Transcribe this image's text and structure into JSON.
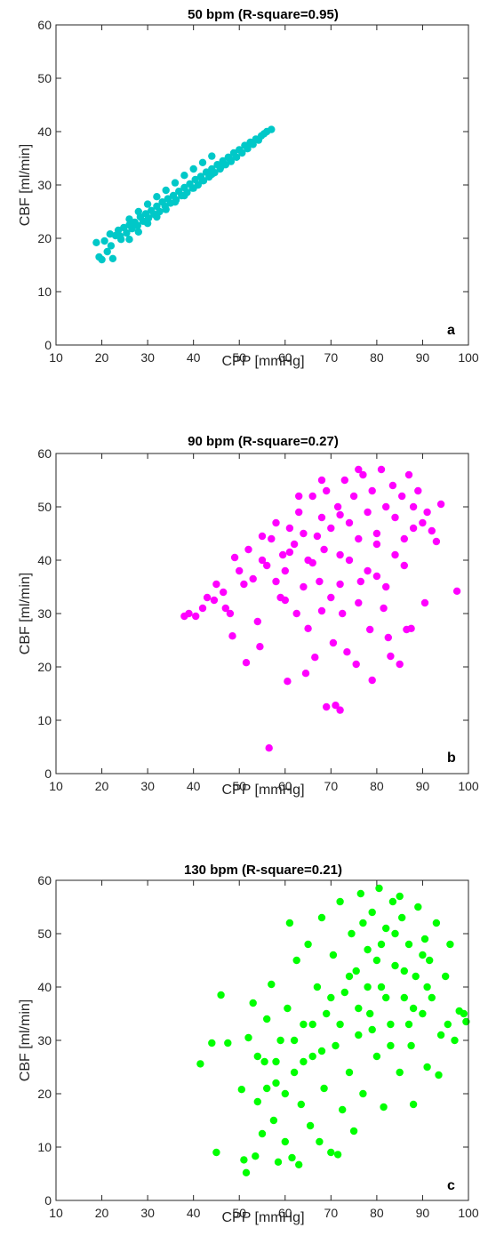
{
  "chart_data": [
    {
      "type": "scatter",
      "title": "50 bpm (R-square=0.95)",
      "xlabel": "CPP [mmHg]",
      "ylabel": "CBF [ml/min]",
      "xlim": [
        10,
        100
      ],
      "ylim": [
        0,
        60
      ],
      "xticks": [
        10,
        20,
        30,
        40,
        50,
        60,
        70,
        80,
        90,
        100
      ],
      "yticks": [
        0,
        10,
        20,
        30,
        40,
        50,
        60
      ],
      "grid": false,
      "color": "#00C8C8",
      "panel_label": "a",
      "points": [
        [
          18.8,
          19.2
        ],
        [
          19.4,
          16.5
        ],
        [
          20.0,
          16.0
        ],
        [
          20.6,
          19.5
        ],
        [
          21.2,
          17.5
        ],
        [
          21.8,
          20.8
        ],
        [
          22.4,
          16.2
        ],
        [
          23.0,
          20.5
        ],
        [
          23.6,
          21.5
        ],
        [
          24.2,
          19.8
        ],
        [
          24.8,
          22.0
        ],
        [
          25.4,
          21.0
        ],
        [
          26.0,
          22.5
        ],
        [
          26.6,
          21.8
        ],
        [
          27.2,
          23.0
        ],
        [
          27.8,
          22.4
        ],
        [
          28.4,
          24.0
        ],
        [
          29.0,
          23.2
        ],
        [
          29.6,
          24.6
        ],
        [
          30.2,
          23.8
        ],
        [
          30.8,
          25.2
        ],
        [
          31.4,
          24.5
        ],
        [
          32.0,
          26.0
        ],
        [
          32.6,
          25.0
        ],
        [
          33.2,
          26.8
        ],
        [
          33.8,
          26.0
        ],
        [
          34.4,
          27.4
        ],
        [
          35.0,
          26.6
        ],
        [
          35.6,
          28.0
        ],
        [
          36.2,
          27.2
        ],
        [
          36.8,
          28.8
        ],
        [
          37.4,
          28.0
        ],
        [
          38.0,
          29.5
        ],
        [
          38.6,
          28.6
        ],
        [
          39.2,
          30.2
        ],
        [
          39.8,
          29.4
        ],
        [
          40.4,
          31.0
        ],
        [
          41.0,
          30.0
        ],
        [
          41.6,
          31.6
        ],
        [
          42.2,
          30.8
        ],
        [
          42.8,
          32.4
        ],
        [
          43.4,
          31.5
        ],
        [
          44.0,
          33.0
        ],
        [
          44.6,
          32.3
        ],
        [
          45.2,
          33.8
        ],
        [
          45.8,
          33.0
        ],
        [
          46.4,
          34.5
        ],
        [
          47.0,
          33.8
        ],
        [
          47.6,
          35.2
        ],
        [
          48.2,
          34.4
        ],
        [
          48.8,
          36.0
        ],
        [
          49.4,
          35.2
        ],
        [
          50.0,
          36.6
        ],
        [
          50.6,
          36.0
        ],
        [
          51.2,
          37.4
        ],
        [
          51.8,
          36.8
        ],
        [
          52.4,
          38.0
        ],
        [
          53.0,
          37.6
        ],
        [
          53.6,
          38.6
        ],
        [
          54.2,
          38.4
        ],
        [
          54.8,
          39.2
        ],
        [
          55.4,
          39.6
        ],
        [
          56.0,
          40.0
        ],
        [
          57.0,
          40.4
        ],
        [
          26.0,
          19.8
        ],
        [
          28.0,
          21.2
        ],
        [
          30.0,
          22.8
        ],
        [
          32.0,
          24.0
        ],
        [
          34.0,
          25.4
        ],
        [
          36.0,
          26.8
        ],
        [
          38.0,
          28.0
        ],
        [
          40.0,
          29.4
        ],
        [
          42.0,
          30.8
        ],
        [
          44.0,
          32.0
        ],
        [
          46.0,
          33.4
        ],
        [
          48.0,
          34.8
        ],
        [
          22.0,
          18.6
        ],
        [
          24.0,
          20.4
        ],
        [
          26.0,
          23.6
        ],
        [
          28.0,
          25.0
        ],
        [
          30.0,
          26.4
        ],
        [
          32.0,
          27.8
        ],
        [
          34.0,
          29.0
        ],
        [
          36.0,
          30.4
        ],
        [
          38.0,
          31.8
        ],
        [
          40.0,
          33.0
        ],
        [
          42.0,
          34.2
        ],
        [
          44.0,
          35.4
        ]
      ]
    },
    {
      "type": "scatter",
      "title": "90 bpm (R-square=0.27)",
      "xlabel": "CPP [mmHg]",
      "ylabel": "CBF [ml/min]",
      "xlim": [
        10,
        100
      ],
      "ylim": [
        0,
        60
      ],
      "xticks": [
        10,
        20,
        30,
        40,
        50,
        60,
        70,
        80,
        90,
        100
      ],
      "yticks": [
        0,
        10,
        20,
        30,
        40,
        50,
        60
      ],
      "grid": false,
      "color": "#FF00FF",
      "panel_label": "b",
      "points": [
        [
          38.0,
          29.5
        ],
        [
          39.0,
          30.0
        ],
        [
          40.5,
          29.5
        ],
        [
          42.0,
          31.0
        ],
        [
          43.0,
          33.0
        ],
        [
          44.5,
          32.5
        ],
        [
          45.0,
          35.5
        ],
        [
          46.5,
          34.0
        ],
        [
          47.0,
          31.0
        ],
        [
          48.0,
          30.0
        ],
        [
          48.5,
          25.8
        ],
        [
          49.0,
          40.5
        ],
        [
          50.0,
          38.0
        ],
        [
          51.0,
          35.5
        ],
        [
          51.5,
          20.8
        ],
        [
          52.0,
          42.0
        ],
        [
          53.0,
          36.5
        ],
        [
          54.0,
          28.5
        ],
        [
          54.5,
          23.8
        ],
        [
          55.0,
          40.0
        ],
        [
          56.0,
          39.0
        ],
        [
          56.5,
          4.8
        ],
        [
          57.0,
          44.0
        ],
        [
          58.0,
          36.0
        ],
        [
          59.0,
          33.0
        ],
        [
          59.5,
          41.0
        ],
        [
          60.0,
          38.0
        ],
        [
          60.5,
          17.3
        ],
        [
          61.0,
          46.0
        ],
        [
          62.0,
          43.0
        ],
        [
          62.5,
          30.0
        ],
        [
          63.0,
          49.0
        ],
        [
          64.0,
          45.0
        ],
        [
          64.5,
          18.8
        ],
        [
          65.0,
          27.2
        ],
        [
          65.0,
          40.0
        ],
        [
          66.0,
          52.0
        ],
        [
          66.5,
          21.8
        ],
        [
          67.0,
          44.5
        ],
        [
          67.5,
          36.0
        ],
        [
          68.0,
          48.0
        ],
        [
          68.5,
          42.0
        ],
        [
          69.0,
          12.5
        ],
        [
          69.0,
          53.0
        ],
        [
          70.0,
          46.0
        ],
        [
          70.5,
          24.5
        ],
        [
          71.0,
          12.8
        ],
        [
          71.5,
          50.0
        ],
        [
          72.0,
          11.9
        ],
        [
          72.0,
          41.0
        ],
        [
          72.5,
          30.0
        ],
        [
          73.0,
          55.0
        ],
        [
          73.5,
          22.8
        ],
        [
          74.0,
          47.0
        ],
        [
          75.0,
          52.0
        ],
        [
          75.5,
          20.5
        ],
        [
          76.0,
          44.0
        ],
        [
          76.5,
          36.0
        ],
        [
          77.0,
          56.0
        ],
        [
          78.0,
          49.0
        ],
        [
          78.5,
          27.0
        ],
        [
          79.0,
          17.5
        ],
        [
          79.0,
          53.0
        ],
        [
          80.0,
          45.0
        ],
        [
          81.0,
          57.0
        ],
        [
          81.5,
          31.0
        ],
        [
          82.0,
          50.0
        ],
        [
          82.5,
          25.5
        ],
        [
          83.0,
          22.0
        ],
        [
          83.5,
          54.0
        ],
        [
          84.0,
          48.0
        ],
        [
          85.0,
          20.5
        ],
        [
          85.5,
          52.0
        ],
        [
          86.0,
          44.0
        ],
        [
          86.5,
          27.0
        ],
        [
          87.0,
          56.0
        ],
        [
          87.5,
          27.2
        ],
        [
          88.0,
          50.0
        ],
        [
          89.0,
          53.0
        ],
        [
          90.0,
          47.0
        ],
        [
          90.5,
          32.0
        ],
        [
          91.0,
          49.0
        ],
        [
          92.0,
          45.5
        ],
        [
          93.0,
          43.5
        ],
        [
          94.0,
          50.5
        ],
        [
          97.5,
          34.2
        ],
        [
          55.0,
          44.5
        ],
        [
          58.0,
          47.0
        ],
        [
          61.0,
          41.5
        ],
        [
          63.0,
          52.0
        ],
        [
          66.0,
          39.5
        ],
        [
          68.0,
          55.0
        ],
        [
          70.0,
          33.0
        ],
        [
          72.0,
          48.5
        ],
        [
          74.0,
          40.0
        ],
        [
          76.0,
          57.0
        ],
        [
          78.0,
          38.0
        ],
        [
          80.0,
          43.0
        ],
        [
          82.0,
          35.0
        ],
        [
          84.0,
          41.0
        ],
        [
          86.0,
          39.0
        ],
        [
          88.0,
          46.0
        ],
        [
          60.0,
          32.5
        ],
        [
          64.0,
          35.0
        ],
        [
          68.0,
          30.5
        ],
        [
          72.0,
          35.5
        ],
        [
          76.0,
          32.0
        ],
        [
          80.0,
          37.0
        ]
      ]
    },
    {
      "type": "scatter",
      "title": "130 bpm (R-square=0.21)",
      "xlabel": "CPP [mmHg]",
      "ylabel": "CBF [ml/min]",
      "xlim": [
        10,
        100
      ],
      "ylim": [
        0,
        60
      ],
      "xticks": [
        10,
        20,
        30,
        40,
        50,
        60,
        70,
        80,
        90,
        100
      ],
      "yticks": [
        0,
        10,
        20,
        30,
        40,
        50,
        60
      ],
      "grid": false,
      "color": "#00FF00",
      "panel_label": "c",
      "points": [
        [
          41.5,
          25.6
        ],
        [
          44.0,
          29.5
        ],
        [
          45.0,
          9.0
        ],
        [
          46.0,
          38.5
        ],
        [
          47.5,
          29.5
        ],
        [
          50.5,
          20.8
        ],
        [
          51.0,
          7.6
        ],
        [
          51.5,
          5.2
        ],
        [
          52.0,
          30.5
        ],
        [
          53.0,
          37.0
        ],
        [
          53.5,
          8.3
        ],
        [
          54.0,
          18.5
        ],
        [
          55.0,
          12.5
        ],
        [
          55.5,
          26.0
        ],
        [
          56.0,
          34.0
        ],
        [
          57.0,
          40.5
        ],
        [
          57.5,
          15.0
        ],
        [
          58.0,
          22.0
        ],
        [
          58.5,
          7.2
        ],
        [
          59.0,
          30.0
        ],
        [
          60.0,
          11.0
        ],
        [
          60.5,
          36.0
        ],
        [
          61.0,
          52.0
        ],
        [
          61.5,
          8.0
        ],
        [
          62.0,
          24.0
        ],
        [
          62.5,
          45.0
        ],
        [
          63.0,
          6.7
        ],
        [
          63.5,
          18.0
        ],
        [
          64.0,
          33.0
        ],
        [
          65.0,
          48.0
        ],
        [
          65.5,
          14.0
        ],
        [
          66.0,
          27.0
        ],
        [
          67.0,
          40.0
        ],
        [
          67.5,
          11.0
        ],
        [
          68.0,
          53.0
        ],
        [
          68.5,
          21.0
        ],
        [
          69.0,
          35.0
        ],
        [
          70.0,
          9.0
        ],
        [
          70.5,
          46.0
        ],
        [
          71.0,
          29.0
        ],
        [
          71.5,
          8.6
        ],
        [
          72.0,
          56.0
        ],
        [
          72.5,
          17.0
        ],
        [
          73.0,
          39.0
        ],
        [
          74.0,
          24.0
        ],
        [
          74.5,
          50.0
        ],
        [
          75.0,
          13.0
        ],
        [
          75.5,
          43.0
        ],
        [
          76.0,
          31.0
        ],
        [
          76.5,
          57.5
        ],
        [
          77.0,
          20.0
        ],
        [
          78.0,
          47.0
        ],
        [
          78.5,
          35.0
        ],
        [
          79.0,
          54.0
        ],
        [
          80.0,
          27.0
        ],
        [
          80.5,
          58.5
        ],
        [
          81.0,
          40.0
        ],
        [
          81.5,
          17.5
        ],
        [
          82.0,
          51.0
        ],
        [
          83.0,
          33.0
        ],
        [
          83.5,
          56.0
        ],
        [
          84.0,
          44.0
        ],
        [
          85.0,
          24.0
        ],
        [
          85.5,
          53.0
        ],
        [
          86.0,
          38.0
        ],
        [
          87.0,
          48.0
        ],
        [
          87.5,
          29.0
        ],
        [
          88.0,
          18.0
        ],
        [
          88.5,
          42.0
        ],
        [
          89.0,
          55.0
        ],
        [
          90.0,
          35.0
        ],
        [
          90.5,
          49.0
        ],
        [
          91.0,
          25.0
        ],
        [
          91.5,
          45.0
        ],
        [
          92.0,
          38.0
        ],
        [
          93.0,
          52.0
        ],
        [
          93.5,
          23.5
        ],
        [
          94.0,
          31.0
        ],
        [
          95.0,
          42.0
        ],
        [
          95.5,
          33.0
        ],
        [
          96.0,
          48.0
        ],
        [
          97.0,
          30.0
        ],
        [
          98.0,
          35.5
        ],
        [
          99.0,
          35.0
        ],
        [
          99.5,
          33.5
        ],
        [
          78.0,
          40.0
        ],
        [
          80.0,
          45.0
        ],
        [
          82.0,
          38.0
        ],
        [
          84.0,
          50.0
        ],
        [
          86.0,
          43.0
        ],
        [
          88.0,
          36.0
        ],
        [
          90.0,
          46.0
        ],
        [
          76.0,
          36.0
        ],
        [
          74.0,
          42.0
        ],
        [
          72.0,
          33.0
        ],
        [
          70.0,
          38.0
        ],
        [
          68.0,
          28.0
        ],
        [
          66.0,
          33.0
        ],
        [
          64.0,
          26.0
        ],
        [
          62.0,
          30.0
        ],
        [
          60.0,
          20.0
        ],
        [
          58.0,
          26.0
        ],
        [
          56.0,
          21.0
        ],
        [
          54.0,
          27.0
        ],
        [
          79.0,
          32.0
        ],
        [
          83.0,
          29.0
        ],
        [
          87.0,
          33.0
        ],
        [
          91.0,
          40.0
        ],
        [
          85.0,
          57.0
        ],
        [
          81.0,
          48.0
        ],
        [
          77.0,
          52.0
        ]
      ]
    }
  ]
}
